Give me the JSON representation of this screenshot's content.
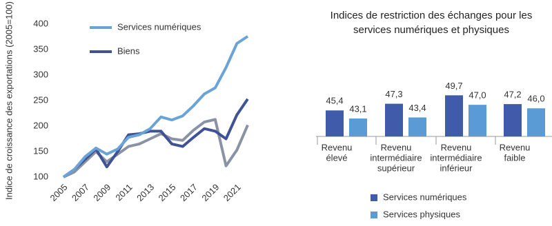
{
  "chart_data": [
    {
      "type": "line",
      "y_label": "Indice de croissance des exportations (2005=100)",
      "x": [
        2005,
        2006,
        2007,
        2008,
        2009,
        2010,
        2011,
        2012,
        2013,
        2014,
        2015,
        2016,
        2017,
        2018,
        2019,
        2020,
        2021,
        2022
      ],
      "xlim": [
        2005,
        2022
      ],
      "xticks": [
        2005,
        2007,
        2009,
        2011,
        2013,
        2015,
        2017,
        2019,
        2021
      ],
      "ylim": [
        100,
        400
      ],
      "yticks": [
        100,
        150,
        200,
        250,
        300,
        350,
        400
      ],
      "series": [
        {
          "color": "#8a93a4",
          "values": [
            100,
            110,
            130,
            150,
            130,
            145,
            160,
            165,
            175,
            185,
            175,
            172,
            192,
            208,
            213,
            122,
            153,
            202
          ]
        },
        {
          "name": "Biens",
          "color": "#3f5296",
          "values": [
            100,
            115,
            135,
            155,
            120,
            150,
            183,
            185,
            190,
            190,
            165,
            160,
            178,
            195,
            190,
            175,
            222,
            253
          ]
        },
        {
          "name": "Services numériques",
          "color": "#6aa3d5",
          "values": [
            100,
            115,
            140,
            157,
            145,
            155,
            178,
            183,
            195,
            218,
            212,
            220,
            240,
            263,
            275,
            315,
            362,
            376
          ]
        }
      ]
    },
    {
      "type": "bar",
      "title": "Indices de restriction des échanges pour les services numériques et physiques",
      "categories": [
        [
          "Revenu",
          "élevé"
        ],
        [
          "Revenu",
          "intermédiaire",
          "supérieur"
        ],
        [
          "Revenu",
          "intermédiaire",
          "inférieur"
        ],
        [
          "Revenu",
          "faible"
        ]
      ],
      "ylim": [
        38,
        52
      ],
      "series": [
        {
          "name": "Services numériques",
          "color": "#3f5ba9",
          "values": [
            45.4,
            47.3,
            49.7,
            47.2
          ],
          "value_labels": [
            "45,4",
            "47,3",
            "49,7",
            "47,2"
          ]
        },
        {
          "name": "Services physiques",
          "color": "#5b9bd5",
          "values": [
            43.1,
            43.4,
            47.0,
            46.0
          ],
          "value_labels": [
            "43,1",
            "43,4",
            "47,0",
            "46,0"
          ]
        }
      ]
    }
  ]
}
